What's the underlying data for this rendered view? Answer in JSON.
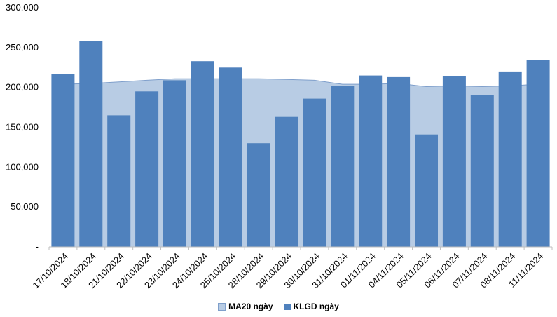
{
  "chart_data": {
    "type": "bar",
    "categories": [
      "17/10/2024",
      "18/10/2024",
      "21/10/2024",
      "22/10/2024",
      "23/10/2024",
      "24/10/2024",
      "25/10/2024",
      "28/10/2024",
      "29/10/2024",
      "30/10/2024",
      "31/10/2024",
      "01/11/2024",
      "04/11/2024",
      "05/11/2024",
      "06/11/2024",
      "07/11/2024",
      "08/11/2024",
      "11/11/2024"
    ],
    "series": [
      {
        "name": "MA20 ngày",
        "type": "area",
        "color": "#b8cce4",
        "values": [
          204000,
          205000,
          207000,
          209000,
          211000,
          211000,
          211000,
          211000,
          210000,
          209000,
          204000,
          204000,
          205000,
          201000,
          202000,
          201000,
          202000,
          204000
        ]
      },
      {
        "name": "KLGD ngày",
        "type": "bar",
        "color": "#4f81bd",
        "values": [
          217000,
          258000,
          165000,
          195000,
          209000,
          233000,
          225000,
          130000,
          163000,
          186000,
          202000,
          215000,
          213000,
          141000,
          214000,
          190000,
          220000,
          234000
        ]
      }
    ],
    "y_ticks": [
      "-",
      "50,000",
      "100,000",
      "150,000",
      "200,000",
      "250,000",
      "300,000"
    ],
    "ylim": [
      0,
      300000
    ],
    "xlabel": "",
    "ylabel": "",
    "legend_position": "bottom"
  }
}
